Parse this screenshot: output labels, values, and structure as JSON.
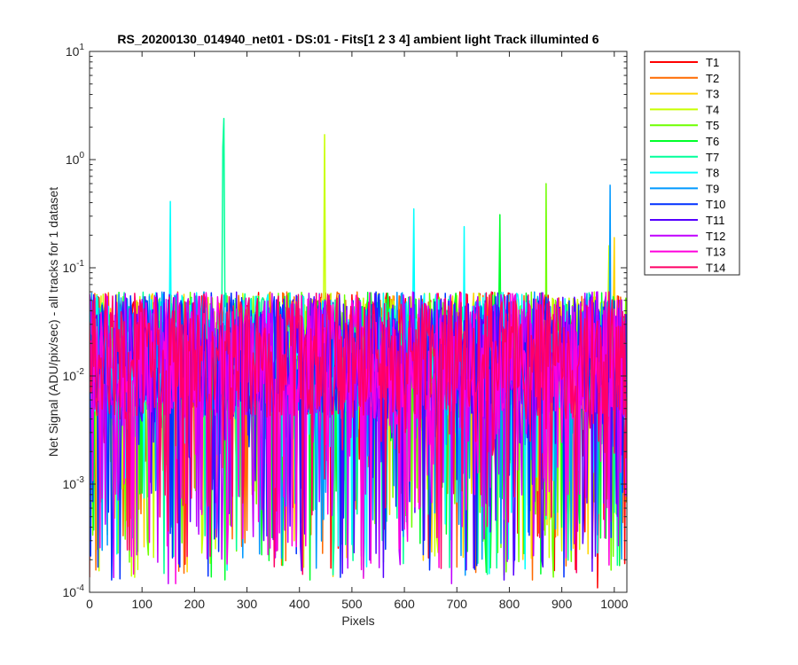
{
  "chart_data": {
    "type": "line",
    "title": "RS_20200130_014940_net01 - DS:01 - Fits[1  2  3  4]   ambient light   Track illuminted 6",
    "xlabel": "Pixels",
    "ylabel": "Net Signal (ADU/pix/sec) - all tracks for 1 dataset",
    "xlim": [
      0,
      1024
    ],
    "ylim": [
      0.0001,
      10
    ],
    "yscale": "log",
    "x_ticks": [
      0,
      100,
      200,
      300,
      400,
      500,
      600,
      700,
      800,
      900,
      1000
    ],
    "x_tick_labels": [
      "0",
      "100",
      "200",
      "300",
      "400",
      "500",
      "600",
      "700",
      "800",
      "900",
      "1000"
    ],
    "y_ticks": [
      0.0001,
      0.001,
      0.01,
      0.1,
      1,
      10
    ],
    "y_tick_labels": [
      {
        "base": "10",
        "exp": "-4"
      },
      {
        "base": "10",
        "exp": "-3"
      },
      {
        "base": "10",
        "exp": "-2"
      },
      {
        "base": "10",
        "exp": "-1"
      },
      {
        "base": "10",
        "exp": "0"
      },
      {
        "base": "10",
        "exp": "1"
      }
    ],
    "grid": false,
    "legend_position": "outside-right",
    "series": [
      {
        "name": "T1",
        "color": "#ff0000",
        "peaks": [
          {
            "x": 970,
            "y": 0.00055
          },
          {
            "x": 968,
            "y": 0.00011
          }
        ]
      },
      {
        "name": "T2",
        "color": "#ff6a00",
        "peaks": [
          {
            "x": 845,
            "y": 0.00013
          }
        ]
      },
      {
        "name": "T3",
        "color": "#ffd400",
        "peaks": [
          {
            "x": 1000,
            "y": 0.19
          },
          {
            "x": 15,
            "y": 0.00025
          }
        ]
      },
      {
        "name": "T4",
        "color": "#c8ff00",
        "peaks": [
          {
            "x": 449,
            "y": 1.7
          },
          {
            "x": 990,
            "y": 0.16
          }
        ]
      },
      {
        "name": "T5",
        "color": "#6eff00",
        "peaks": [
          {
            "x": 870,
            "y": 0.6
          }
        ]
      },
      {
        "name": "T6",
        "color": "#00ff2a",
        "peaks": [
          {
            "x": 782,
            "y": 0.31
          },
          {
            "x": 420,
            "y": 0.00013
          }
        ]
      },
      {
        "name": "T7",
        "color": "#00ff99",
        "peaks": [
          {
            "x": 257,
            "y": 2.4
          },
          {
            "x": 255,
            "y": 1.3
          }
        ]
      },
      {
        "name": "T8",
        "color": "#00ffff",
        "peaks": [
          {
            "x": 154,
            "y": 0.41
          },
          {
            "x": 619,
            "y": 0.35
          },
          {
            "x": 714,
            "y": 0.24
          },
          {
            "x": 262,
            "y": 0.00016
          }
        ]
      },
      {
        "name": "T9",
        "color": "#0099ff",
        "peaks": [
          {
            "x": 993,
            "y": 0.58
          }
        ]
      },
      {
        "name": "T10",
        "color": "#0030ff",
        "peaks": [
          {
            "x": 42,
            "y": 0.00013
          }
        ]
      },
      {
        "name": "T11",
        "color": "#5500ff",
        "peaks": [
          {
            "x": 790,
            "y": 0.00013
          }
        ]
      },
      {
        "name": "T12",
        "color": "#c000ff",
        "peaks": [
          {
            "x": 150,
            "y": 0.00012
          },
          {
            "x": 690,
            "y": 0.00012
          }
        ]
      },
      {
        "name": "T13",
        "color": "#ff00dd",
        "peaks": [
          {
            "x": 165,
            "y": 0.00012
          }
        ]
      },
      {
        "name": "T14",
        "color": "#ff0066",
        "peaks": []
      }
    ],
    "baseline": {
      "typical_range": [
        0.004,
        0.06
      ],
      "noise_floor": 0.0001
    }
  }
}
